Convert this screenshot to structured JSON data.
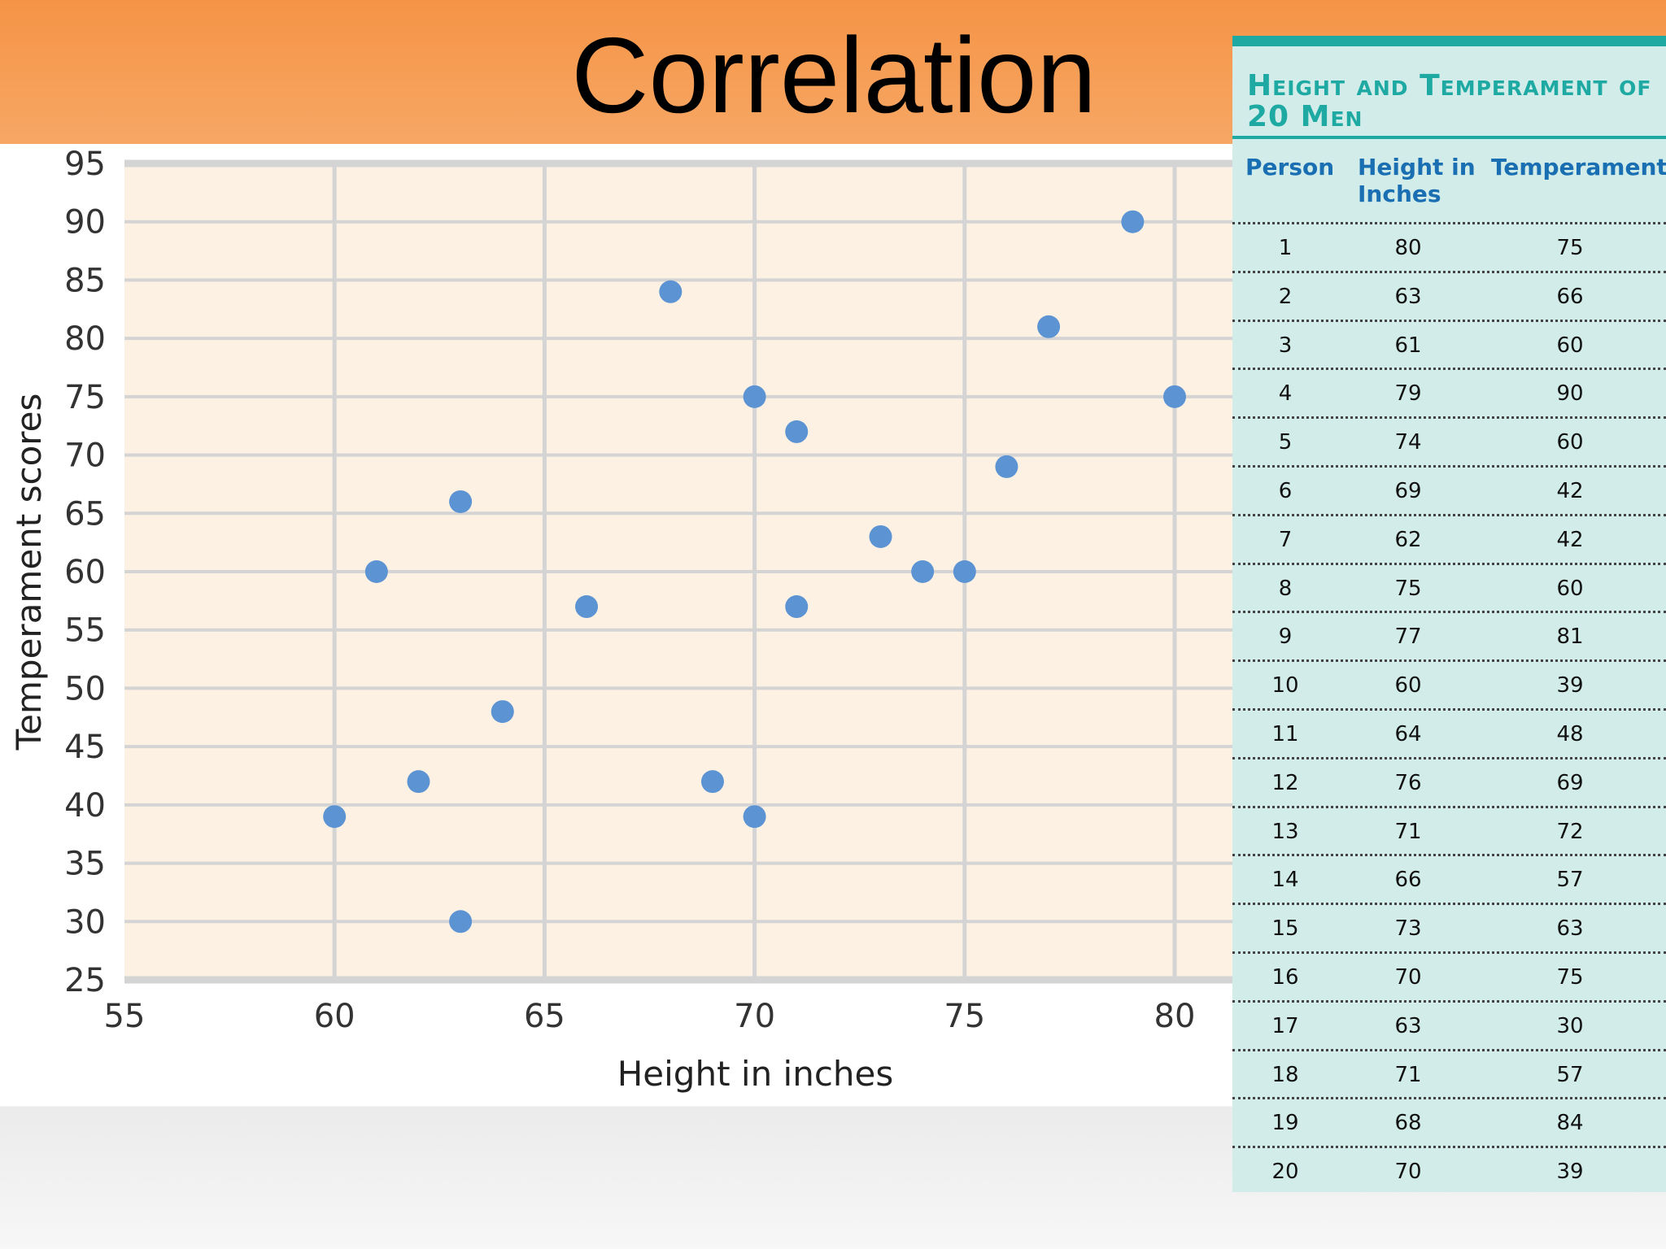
{
  "slide_title": "Correlation",
  "colors": {
    "header": "#f59446",
    "plot_background": "#fdf1e3",
    "gridline": "#d4d4d4",
    "point": "#5b93d3",
    "table_background": "#d2ede9",
    "table_accent": "#1fa9a3",
    "table_header_text": "#1a6fb3"
  },
  "chart_data": {
    "type": "scatter",
    "title": "",
    "xlabel": "Height in inches",
    "ylabel": "Temperament scores",
    "xlim": [
      55,
      80
    ],
    "ylim": [
      25,
      95
    ],
    "x_ticks": [
      55,
      60,
      65,
      70,
      75,
      80
    ],
    "y_ticks": [
      95,
      90,
      85,
      80,
      75,
      70,
      65,
      60,
      55,
      50,
      45,
      40,
      35,
      30,
      25
    ],
    "grid": true,
    "points": [
      {
        "x": 80,
        "y": 75
      },
      {
        "x": 63,
        "y": 66
      },
      {
        "x": 61,
        "y": 60
      },
      {
        "x": 79,
        "y": 90
      },
      {
        "x": 74,
        "y": 60
      },
      {
        "x": 69,
        "y": 42
      },
      {
        "x": 62,
        "y": 42
      },
      {
        "x": 75,
        "y": 60
      },
      {
        "x": 77,
        "y": 81
      },
      {
        "x": 60,
        "y": 39
      },
      {
        "x": 64,
        "y": 48
      },
      {
        "x": 76,
        "y": 69
      },
      {
        "x": 71,
        "y": 72
      },
      {
        "x": 66,
        "y": 57
      },
      {
        "x": 73,
        "y": 63
      },
      {
        "x": 70,
        "y": 75
      },
      {
        "x": 63,
        "y": 30
      },
      {
        "x": 71,
        "y": 57
      },
      {
        "x": 68,
        "y": 84
      },
      {
        "x": 70,
        "y": 39
      }
    ]
  },
  "table": {
    "title": "Height and Temperament of 20 Men",
    "headers": [
      "Person",
      "Height in Inches",
      "Temperament"
    ],
    "rows": [
      [
        "1",
        "80",
        "75"
      ],
      [
        "2",
        "63",
        "66"
      ],
      [
        "3",
        "61",
        "60"
      ],
      [
        "4",
        "79",
        "90"
      ],
      [
        "5",
        "74",
        "60"
      ],
      [
        "6",
        "69",
        "42"
      ],
      [
        "7",
        "62",
        "42"
      ],
      [
        "8",
        "75",
        "60"
      ],
      [
        "9",
        "77",
        "81"
      ],
      [
        "10",
        "60",
        "39"
      ],
      [
        "11",
        "64",
        "48"
      ],
      [
        "12",
        "76",
        "69"
      ],
      [
        "13",
        "71",
        "72"
      ],
      [
        "14",
        "66",
        "57"
      ],
      [
        "15",
        "73",
        "63"
      ],
      [
        "16",
        "70",
        "75"
      ],
      [
        "17",
        "63",
        "30"
      ],
      [
        "18",
        "71",
        "57"
      ],
      [
        "19",
        "68",
        "84"
      ],
      [
        "20",
        "70",
        "39"
      ]
    ]
  }
}
